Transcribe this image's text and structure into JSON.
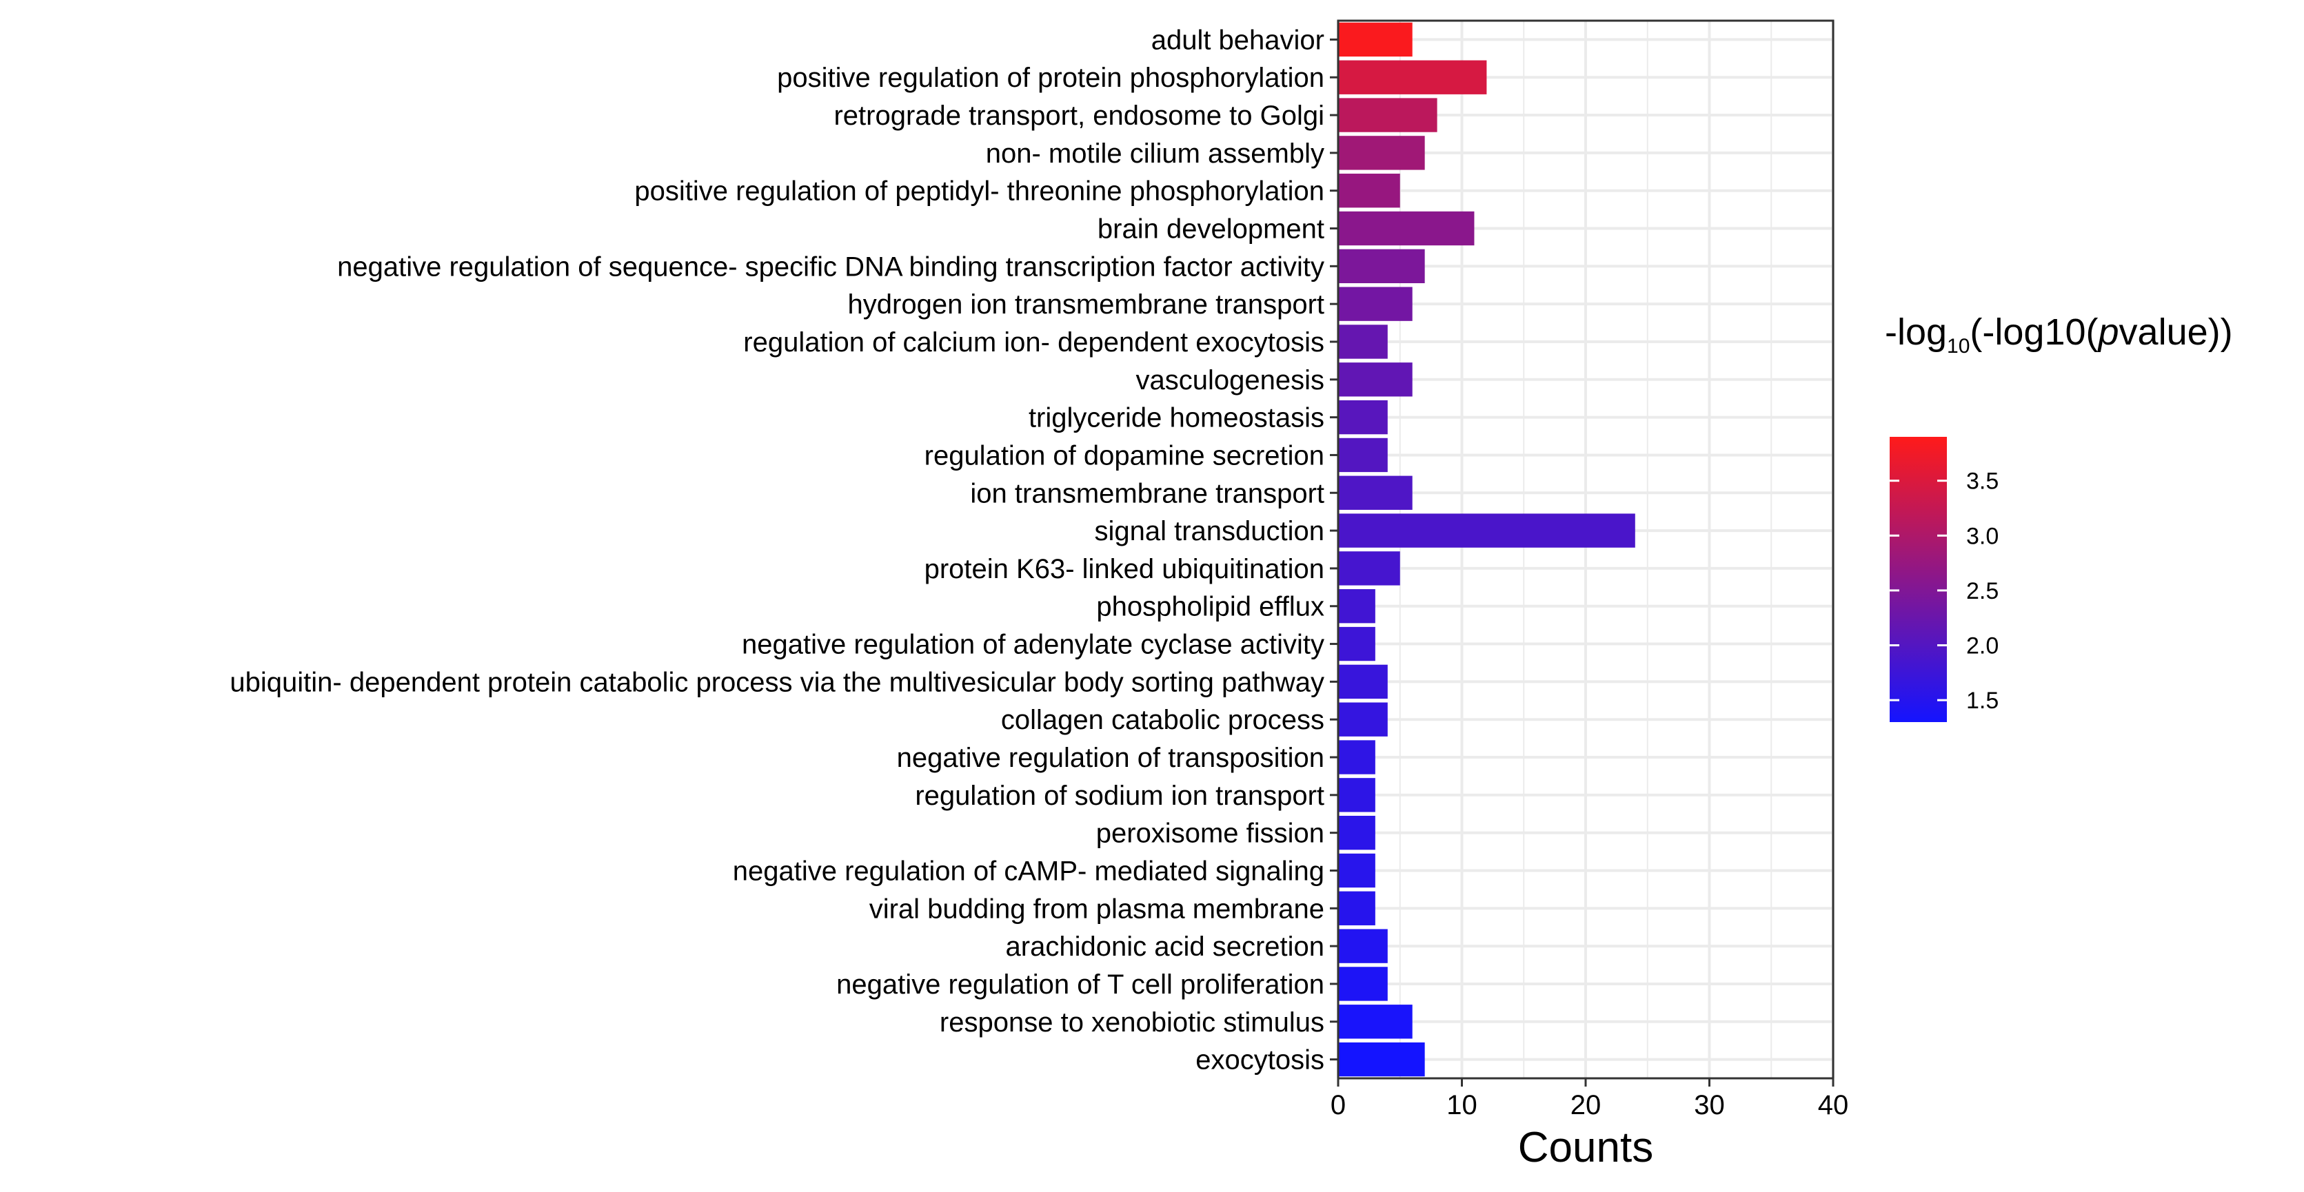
{
  "chart_data": {
    "type": "bar",
    "orientation": "horizontal",
    "categories": [
      "adult behavior",
      "positive regulation of protein phosphorylation",
      "retrograde transport, endosome to Golgi",
      "non- motile cilium assembly",
      "positive regulation of peptidyl- threonine phosphorylation",
      "brain development",
      "negative regulation of sequence- specific DNA binding transcription factor activity",
      "hydrogen ion transmembrane transport",
      "regulation of calcium ion- dependent exocytosis",
      "vasculogenesis",
      "triglyceride homeostasis",
      "regulation of dopamine secretion",
      "ion transmembrane transport",
      "signal transduction",
      "protein K63- linked ubiquitination",
      "phospholipid efflux",
      "negative regulation of adenylate cyclase activity",
      "ubiquitin- dependent protein catabolic process via the multivesicular body sorting pathway",
      "collagen catabolic process",
      "negative regulation of transposition",
      "regulation of sodium ion transport",
      "peroxisome fission",
      "negative regulation of cAMP- mediated signaling",
      "viral budding from plasma membrane",
      "arachidonic acid secretion",
      "negative regulation of T cell proliferation",
      "response to xenobiotic stimulus",
      "exocytosis"
    ],
    "values": [
      6,
      12,
      8,
      7,
      5,
      11,
      7,
      6,
      4,
      6,
      4,
      4,
      6,
      24,
      5,
      3,
      3,
      4,
      4,
      3,
      3,
      3,
      3,
      3,
      4,
      4,
      6,
      7
    ],
    "color_values": [
      3.85,
      3.45,
      3.15,
      2.85,
      2.75,
      2.6,
      2.45,
      2.35,
      2.2,
      2.15,
      2.05,
      2.0,
      1.95,
      1.9,
      1.85,
      1.8,
      1.75,
      1.7,
      1.65,
      1.6,
      1.58,
      1.55,
      1.52,
      1.5,
      1.45,
      1.4,
      1.35,
      1.3
    ],
    "xlabel": "Counts",
    "ylabel": "",
    "xlim": [
      0,
      40
    ],
    "xticks": [
      "0",
      "10",
      "20",
      "30",
      "40"
    ],
    "grid": true,
    "legend": {
      "title_prefix": "-log",
      "title_subscript": "10",
      "title_mid": "(-log10(",
      "title_italic": "p",
      "title_suffix": "value))",
      "range": [
        1.3,
        3.9
      ],
      "ticks": [
        1.5,
        2.0,
        2.5,
        3.0,
        3.5
      ],
      "tick_labels": [
        "1.5",
        "2.0",
        "2.5",
        "3.0",
        "3.5"
      ],
      "low_color": "#1414ff",
      "high_color": "#ff1a1a",
      "placement": "right"
    },
    "colors": {
      "grid": "#ebebeb",
      "axis": "#333333",
      "panel": "#ffffff"
    }
  }
}
